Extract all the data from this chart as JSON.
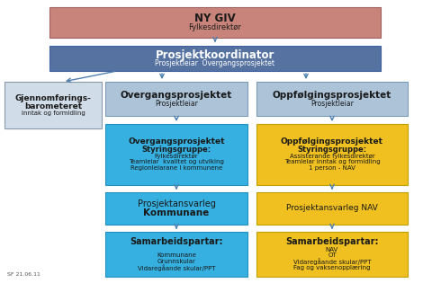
{
  "title_line1": "NY GIV",
  "title_line2": "Fylkesdirektør",
  "coordinator_line1": "Prosjektkoordinator",
  "coordinator_line2": "Prosjektleiar  Overgangsprosjektet",
  "left_box_line1": "Gjennomførings-",
  "left_box_line2": "barometeret",
  "left_box_line3": "inntak og formidling",
  "overgang_h1": "Overgangsprosjektet",
  "overgang_h2": "Prosjektleiar",
  "oppfolg_h1": "Oppfølgingsprosjektet",
  "oppfolg_h2": "Prosjektleiar",
  "overgang_styring_lines": [
    "Overgangsprosjektet",
    "Styringsgruppe:",
    "Fylkesdirektør",
    "Teamleiar  kvalitet og utviking",
    "Regionleiarane i kommunene"
  ],
  "oppfolg_styring_lines": [
    "Oppfølgingsprosjektet",
    "Styringsgruppe:",
    "Assisterande fylkesdirektør",
    "Teamleiar inntak og formidling",
    "1 person - NAV"
  ],
  "overgang_ansvar1": "Prosjektansvarleg",
  "overgang_ansvar2": "Kommunane",
  "oppfolg_ansvar": "Prosjektansvarleg NAV",
  "overgang_samarb_lines": [
    "Samarbeidspartar:",
    "",
    "Kommunane",
    "Grunnskular",
    "Vidaregåande skular/PPT"
  ],
  "oppfolg_samarb_lines": [
    "Samarbeidspartar:",
    "NAV",
    "OT",
    "Vidaregåande skular/PPT",
    "Fag og vaksenopplæring"
  ],
  "footer": "SF 21.06.11",
  "colors": {
    "ny_giv": "#c8847a",
    "coordinator": "#5572a0",
    "left_box_bg": "#d0dce8",
    "left_box_border": "#8899aa",
    "overgang_header": "#adc4d8",
    "oppfolg_header": "#adc4d8",
    "overgang_blue": "#35b0e0",
    "oppfolg_yellow": "#f0c020",
    "header_border": "#7a9ab8",
    "blue_border": "#2090c0",
    "yellow_border": "#c0a000",
    "coord_border": "#4060a0",
    "arrow": "#5080b0",
    "bg": "#ffffff",
    "text_dark": "#1a1a1a",
    "text_white": "#ffffff"
  }
}
